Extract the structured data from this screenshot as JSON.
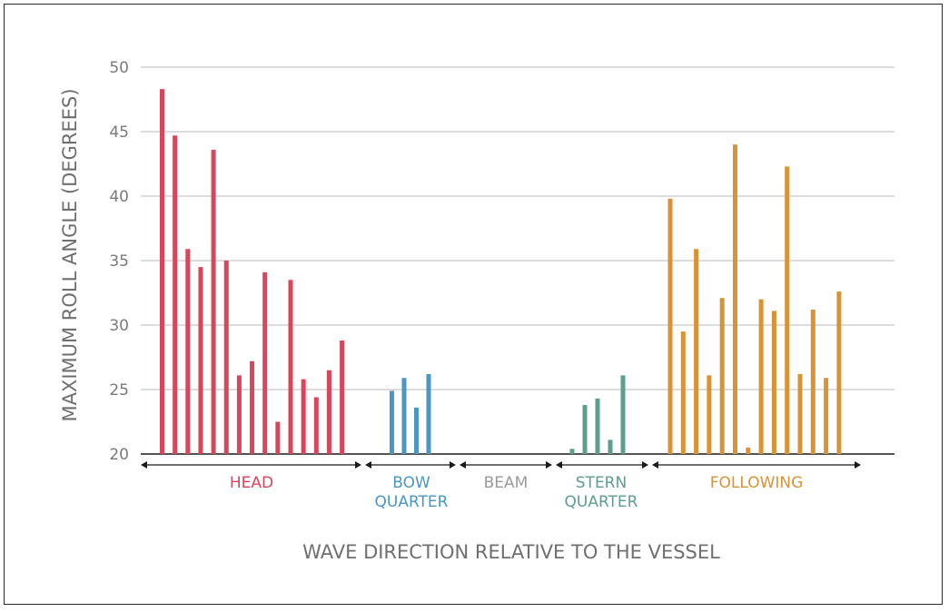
{
  "chart_data": {
    "type": "bar",
    "xlabel": "WAVE DIRECTION RELATIVE TO THE VESSEL",
    "ylabel": "MAXIMUM ROLL ANGLE (DEGREES)",
    "ylim": [
      20,
      50
    ],
    "yticks": [
      "20",
      "25",
      "30",
      "35",
      "40",
      "45",
      "50"
    ],
    "grid": true,
    "groups": [
      {
        "key": "head",
        "lines": [
          "HEAD"
        ],
        "color": "#d9455b",
        "values": [
          48.3,
          44.7,
          35.9,
          34.5,
          43.6,
          35.0,
          26.1,
          27.2,
          34.1,
          22.5,
          33.5,
          25.8,
          24.4,
          26.5,
          28.8
        ]
      },
      {
        "key": "bow",
        "lines": [
          "BOW",
          "QUARTER"
        ],
        "color": "#4a96c4",
        "values": [
          24.9,
          25.9,
          23.6,
          26.2
        ]
      },
      {
        "key": "beam",
        "lines": [
          "BEAM"
        ],
        "color": "#9a9a9a",
        "values": []
      },
      {
        "key": "stern",
        "lines": [
          "STERN",
          "QUARTER"
        ],
        "color": "#5e9e8c",
        "values": [
          20.4,
          23.8,
          24.3,
          21.1,
          26.1
        ]
      },
      {
        "key": "following",
        "lines": [
          "FOLLOWING"
        ],
        "color": "#d99334",
        "values": [
          39.8,
          29.5,
          35.9,
          26.1,
          32.1,
          44.0,
          20.5,
          32.0,
          31.1,
          42.3,
          26.2,
          31.2,
          25.9,
          32.6
        ]
      }
    ]
  }
}
